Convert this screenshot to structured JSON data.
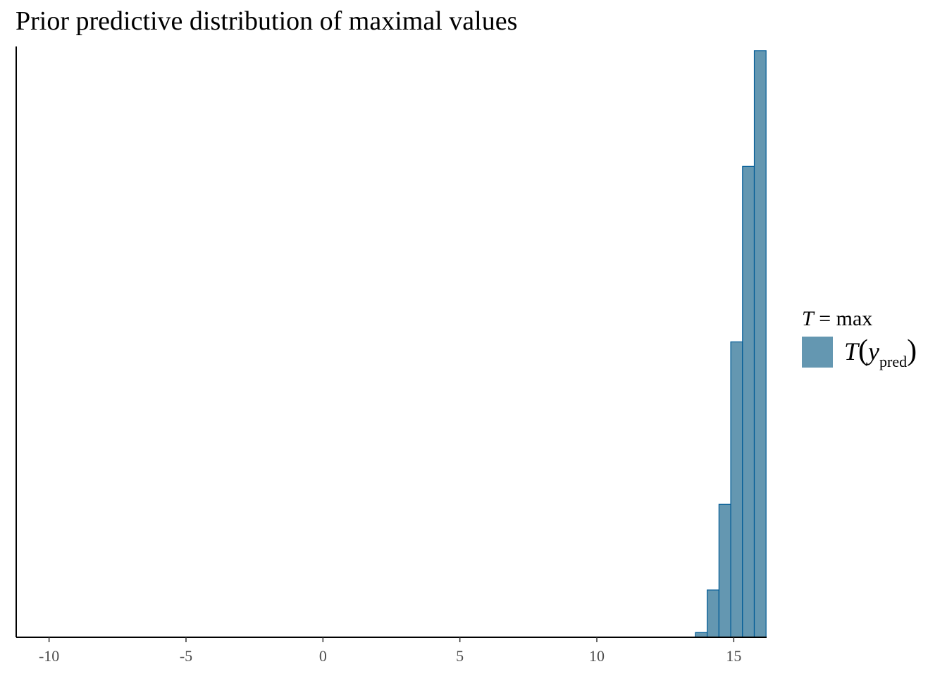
{
  "chart_data": {
    "type": "bar",
    "title": "Prior predictive distribution of maximal values",
    "xlabel": "",
    "ylabel": "",
    "xlim": [
      -11.2,
      16.2
    ],
    "x_ticks": [
      -10,
      -5,
      0,
      5,
      10,
      15
    ],
    "x_tick_labels": [
      "-10",
      "-5",
      "0",
      "5",
      "10",
      "15"
    ],
    "y_axis_visible": false,
    "ylim": [
      0,
      1.0
    ],
    "grid": false,
    "bin_edges": [
      13.6,
      14.03,
      14.46,
      14.89,
      15.32,
      15.75,
      16.18
    ],
    "series": [
      {
        "name": "T(y_pred)",
        "values": [
          0.008,
          0.08,
          0.225,
          0.5,
          0.797,
          0.993
        ]
      }
    ],
    "colors": {
      "fill": "#6497b1",
      "outline": "#005b96",
      "axis": "#000000"
    },
    "legend": {
      "position": "right",
      "title_italic": "T",
      "title_rest": " = max",
      "entry_T": "T",
      "entry_open": "(",
      "entry_y": "y",
      "entry_sub": "pred",
      "entry_close": ")"
    }
  }
}
